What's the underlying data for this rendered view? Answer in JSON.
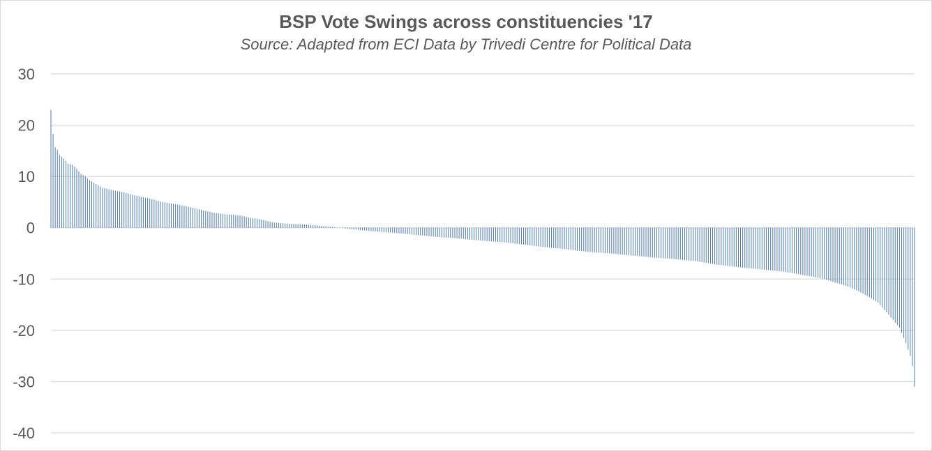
{
  "chart_data": {
    "type": "bar",
    "title": "BSP Vote Swings across constituencies '17",
    "subtitle": "Source: Adapted from ECI Data by Trivedi Centre for Political Data",
    "xlabel": "",
    "ylabel": "",
    "ylim": [
      -40,
      30
    ],
    "yticks": [
      "30",
      "20",
      "10",
      "0",
      "-10",
      "-20",
      "-30",
      "-40"
    ],
    "ytick_values": [
      30,
      20,
      10,
      0,
      -10,
      -20,
      -30,
      -40
    ],
    "grid": true,
    "legend": "none",
    "series_color": "#4a7ab5",
    "grid_color": "#d9d9d9",
    "num_constituencies": 403,
    "sorted": "descending",
    "anchor_points": [
      [
        0,
        23
      ],
      [
        1,
        18.3
      ],
      [
        2,
        15.7
      ],
      [
        3,
        15.2
      ],
      [
        4,
        14.2
      ],
      [
        6,
        13.5
      ],
      [
        8,
        12.5
      ],
      [
        10,
        12.3
      ],
      [
        12,
        11.5
      ],
      [
        14,
        10.5
      ],
      [
        16,
        10.0
      ],
      [
        18,
        9.3
      ],
      [
        20,
        8.8
      ],
      [
        24,
        7.8
      ],
      [
        28,
        7.4
      ],
      [
        34,
        6.9
      ],
      [
        40,
        6.2
      ],
      [
        46,
        5.7
      ],
      [
        52,
        5.0
      ],
      [
        58,
        4.6
      ],
      [
        64,
        4.1
      ],
      [
        70,
        3.5
      ],
      [
        76,
        2.9
      ],
      [
        82,
        2.6
      ],
      [
        88,
        2.4
      ],
      [
        92,
        2.0
      ],
      [
        98,
        1.6
      ],
      [
        104,
        1.0
      ],
      [
        110,
        0.8
      ],
      [
        120,
        0.6
      ],
      [
        128,
        0.3
      ],
      [
        134,
        0.0
      ],
      [
        140,
        -0.3
      ],
      [
        150,
        -0.7
      ],
      [
        160,
        -1.0
      ],
      [
        170,
        -1.4
      ],
      [
        180,
        -1.8
      ],
      [
        190,
        -2.1
      ],
      [
        200,
        -2.5
      ],
      [
        210,
        -2.8
      ],
      [
        220,
        -3.3
      ],
      [
        230,
        -3.8
      ],
      [
        240,
        -4.2
      ],
      [
        250,
        -4.7
      ],
      [
        260,
        -5.0
      ],
      [
        270,
        -5.4
      ],
      [
        280,
        -5.8
      ],
      [
        290,
        -6.1
      ],
      [
        300,
        -6.5
      ],
      [
        310,
        -7.2
      ],
      [
        320,
        -7.7
      ],
      [
        330,
        -8.1
      ],
      [
        340,
        -8.5
      ],
      [
        350,
        -9.2
      ],
      [
        360,
        -10.0
      ],
      [
        365,
        -10.7
      ],
      [
        370,
        -11.3
      ],
      [
        375,
        -12.2
      ],
      [
        380,
        -13.3
      ],
      [
        385,
        -14.6
      ],
      [
        390,
        -17.0
      ],
      [
        395,
        -19.5
      ],
      [
        398,
        -22.5
      ],
      [
        400,
        -25.0
      ],
      [
        401,
        -27.0
      ],
      [
        402,
        -31.0
      ]
    ]
  }
}
